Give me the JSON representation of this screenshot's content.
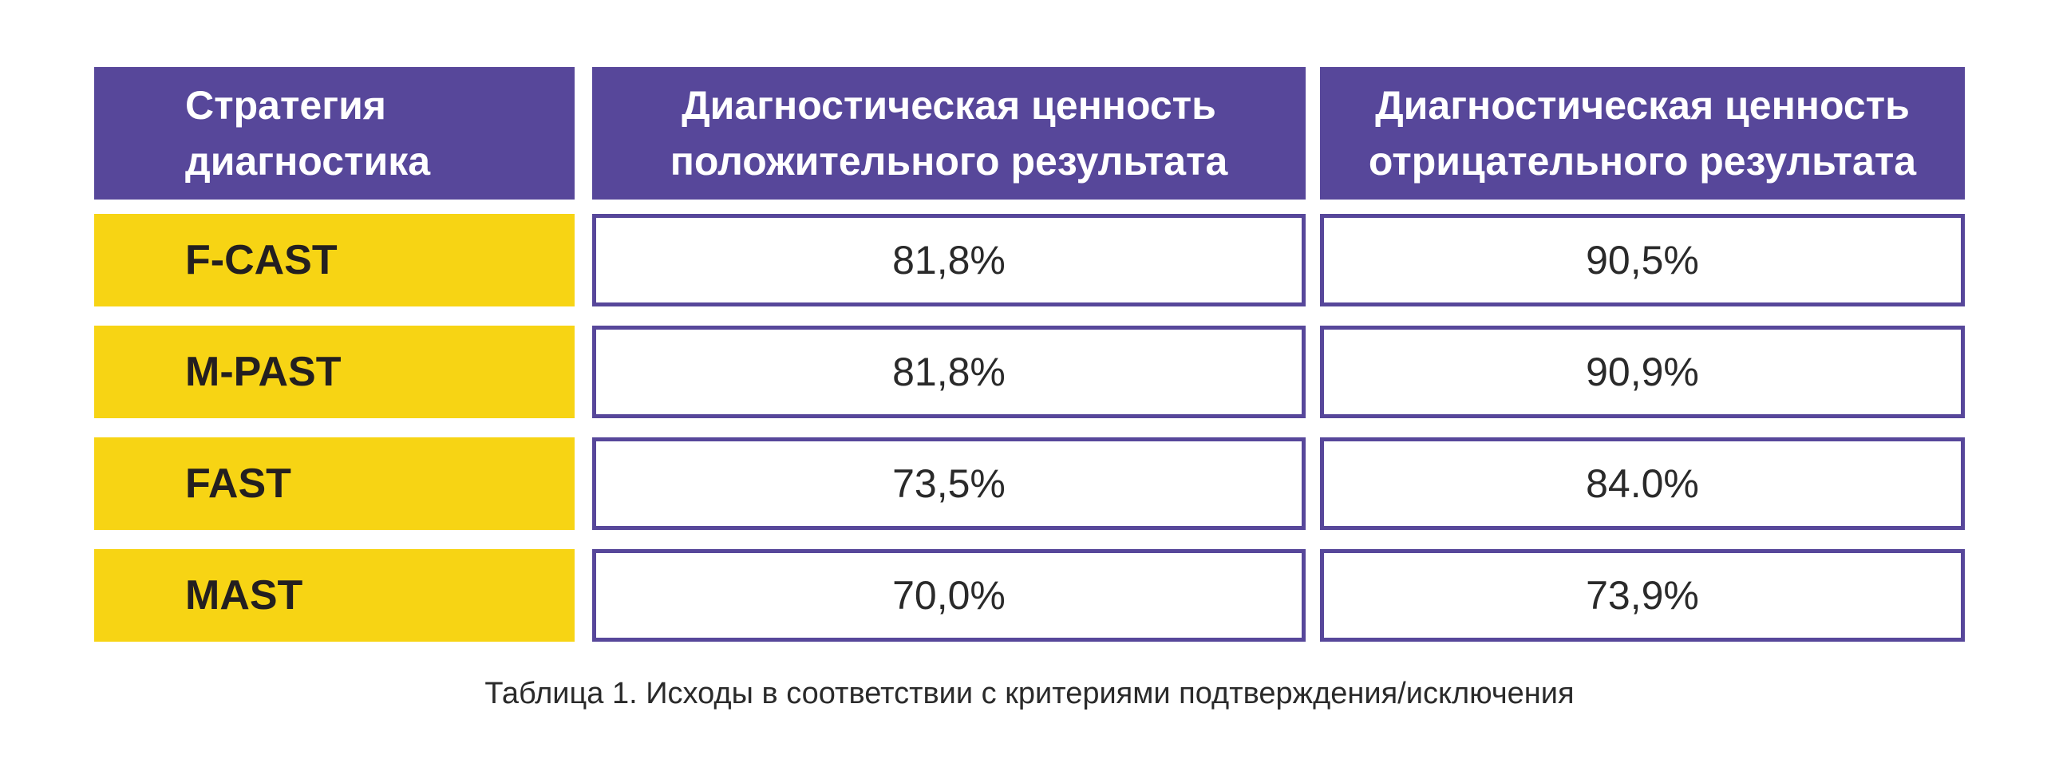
{
  "table": {
    "headers": [
      [
        "Стратегия",
        "диагностика"
      ],
      [
        "Диагностическая ценность",
        "положительного результата"
      ],
      [
        "Диагностическая ценность",
        "отрицательного результата"
      ]
    ],
    "rows": [
      {
        "strategy": "F-CAST",
        "ppv": "81,8%",
        "npv": "90,5%"
      },
      {
        "strategy": "M-PAST",
        "ppv": "81,8%",
        "npv": "90,9%"
      },
      {
        "strategy": "FAST",
        "ppv": "73,5%",
        "npv": "84.0%"
      },
      {
        "strategy": "MAST",
        "ppv": "70,0%",
        "npv": "73,9%"
      }
    ]
  },
  "caption": "Таблица 1. Исходы в соответствии с критериями подтверждения/исключения",
  "colors": {
    "header_bg": "#57479a",
    "strategy_bg": "#f7d414",
    "border": "#57479a"
  }
}
